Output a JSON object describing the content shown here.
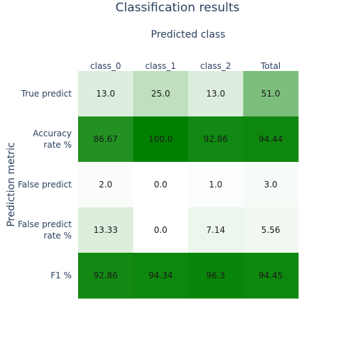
{
  "chart_data": {
    "type": "heatmap",
    "title": "Classification results",
    "xlabel": "Predicted class",
    "ylabel": "Prediction metric",
    "x": [
      "class_0",
      "class_1",
      "class_2",
      "Total"
    ],
    "y": [
      "True predict",
      "Accuracy rate %",
      "False predict",
      "False predict rate %",
      "F1 %"
    ],
    "y_tick_lines": [
      [
        "True predict"
      ],
      [
        "Accuracy",
        "rate %"
      ],
      [
        "False predict"
      ],
      [
        "False predict",
        "rate %"
      ],
      [
        "F1 %"
      ]
    ],
    "z": [
      [
        13.0,
        25.0,
        13.0,
        51.0
      ],
      [
        86.67,
        100.0,
        92.86,
        94.44
      ],
      [
        2.0,
        0.0,
        1.0,
        3.0
      ],
      [
        13.33,
        0.0,
        7.14,
        5.56
      ],
      [
        92.86,
        94.34,
        96.3,
        94.45
      ]
    ],
    "cell_labels": [
      [
        "13.0",
        "25.0",
        "13.0",
        "51.0"
      ],
      [
        "86.67",
        "100.0",
        "92.86",
        "94.44"
      ],
      [
        "2.0",
        "0.0",
        "1.0",
        "3.0"
      ],
      [
        "13.33",
        "0.0",
        "7.14",
        "5.56"
      ],
      [
        "92.86",
        "94.34",
        "96.3",
        "94.45"
      ]
    ],
    "colorscale": [
      "#ffffff",
      "#008000"
    ],
    "zmin": 0,
    "zmax": 100,
    "x_axis_side": "top",
    "showscale": false
  }
}
